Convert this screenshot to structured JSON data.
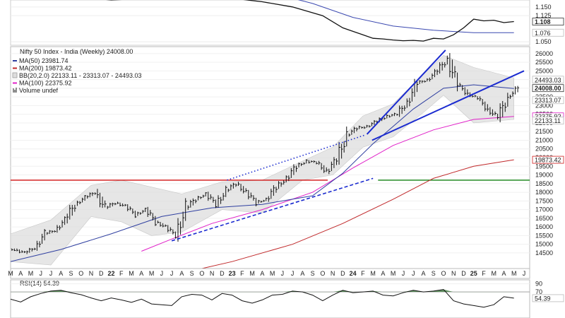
{
  "chart_data": {
    "type": "line",
    "title": "Nifty 50 Index - India (Weekly) 24008.00",
    "legend": [
      {
        "name": "MA(50) 23981.74",
        "color": "#2f3fa0",
        "swatch": "line"
      },
      {
        "name": "MA(200) 19873.42",
        "color": "#c0282a",
        "swatch": "line"
      },
      {
        "name": "BB(20,2.0) 22133.11 - 23313.07 - 24493.03",
        "color": "#aaaaaa",
        "swatch": "box"
      },
      {
        "name": "MA(100) 22375.92",
        "color": "#e020c8",
        "swatch": "line"
      },
      {
        "name": "Volume undef",
        "color": "#444444",
        "swatch": "bars"
      }
    ],
    "x_labels": [
      "M",
      "A",
      "M",
      "J",
      "J",
      "A",
      "S",
      "O",
      "N",
      "D",
      "22",
      "F",
      "M",
      "A",
      "M",
      "J",
      "J",
      "A",
      "S",
      "O",
      "N",
      "D",
      "23",
      "F",
      "M",
      "A",
      "M",
      "J",
      "J",
      "A",
      "S",
      "O",
      "N",
      "D",
      "24",
      "F",
      "M",
      "A",
      "M",
      "J",
      "J",
      "A",
      "S",
      "O",
      "N",
      "D",
      "25",
      "F",
      "M",
      "A",
      "M",
      "J"
    ],
    "year_labels": [
      "22",
      "23",
      "24",
      "25"
    ],
    "xlim": [
      0,
      51
    ],
    "main_panel": {
      "ylim": [
        13600,
        26400
      ],
      "y_ticks": [
        14500,
        15000,
        15500,
        16000,
        16500,
        17000,
        17500,
        18000,
        18500,
        19000,
        19500,
        20000,
        20500,
        21000,
        21500,
        22000,
        22500,
        23000,
        23500,
        24000,
        24500,
        25000,
        25500,
        26000
      ],
      "y_tick_labels": [
        "14500",
        "15000",
        "15500",
        "16000",
        "16500",
        "17000",
        "17500",
        "18000",
        "18500",
        "19000",
        "19500",
        "20000",
        "20500",
        "21000",
        "21500",
        "22000",
        "22500",
        "23000",
        "23500",
        "24000",
        "24500",
        "25000",
        "25500",
        "26000"
      ],
      "value_tags": [
        {
          "value": 24493.03,
          "label": "24493.03",
          "style": "plain"
        },
        {
          "value": 24008,
          "label": "24008.00",
          "style": "bold"
        },
        {
          "value": 23313.07,
          "label": "23313.07",
          "style": "plain"
        },
        {
          "value": 22375.92,
          "label": "22375.92",
          "style": "magenta"
        },
        {
          "value": 22133.11,
          "label": "22133.11",
          "style": "plain"
        },
        {
          "value": 19873.42,
          "label": "19873.42",
          "style": "red"
        }
      ],
      "horizontal_lines": [
        {
          "value": 18700,
          "color": "#d01010"
        },
        {
          "value": 18700,
          "color": "#108010"
        }
      ],
      "price_x": [
        0,
        1,
        2,
        3,
        4,
        5,
        6,
        7,
        8,
        9,
        10,
        11,
        12,
        13,
        14,
        15,
        16,
        17,
        18,
        19,
        20,
        21,
        22,
        23,
        24,
        25,
        26,
        27,
        28,
        29,
        30,
        31,
        32,
        33,
        34,
        35,
        36,
        37,
        38,
        39,
        40,
        41,
        42,
        43,
        44,
        45,
        46,
        47,
        48,
        49,
        50
      ],
      "price": [
        14700,
        14500,
        14800,
        15600,
        15800,
        16400,
        17300,
        17700,
        18000,
        17100,
        17400,
        17200,
        16700,
        17000,
        16300,
        16000,
        15500,
        17100,
        17600,
        17900,
        17300,
        18100,
        18500,
        18000,
        17400,
        17600,
        18300,
        18800,
        19500,
        19800,
        19700,
        19200,
        19900,
        21300,
        21700,
        21800,
        22100,
        22400,
        22500,
        23200,
        24300,
        24500,
        25000,
        25700,
        24200,
        23700,
        23400,
        22800,
        22300,
        23500,
        24008
      ],
      "ma50_x": [
        0,
        5,
        10,
        15,
        20,
        25,
        30,
        33,
        36,
        40,
        43,
        46,
        50
      ],
      "ma50": [
        14000,
        14700,
        15600,
        16600,
        17100,
        17300,
        17800,
        19100,
        20800,
        22800,
        24000,
        24200,
        23982
      ],
      "ma200_x": [
        0,
        8,
        16,
        22,
        28,
        33,
        38,
        42,
        46,
        50
      ],
      "ma200": [
        11800,
        12500,
        13200,
        14000,
        15000,
        16200,
        17600,
        18800,
        19500,
        19873
      ],
      "ma100_x": [
        13,
        16,
        20,
        25,
        30,
        34,
        38,
        42,
        46,
        50
      ],
      "ma100": [
        14600,
        15300,
        16200,
        17000,
        18000,
        19400,
        20700,
        21600,
        22200,
        22376
      ],
      "bb_upper_x": [
        0,
        4,
        8,
        11,
        14,
        17,
        21,
        25,
        29,
        32,
        35,
        38,
        41,
        43,
        46,
        50
      ],
      "bb_upper": [
        15600,
        16400,
        18400,
        18700,
        18300,
        17900,
        18600,
        18700,
        19800,
        20600,
        22400,
        23100,
        24800,
        25900,
        25200,
        24600
      ],
      "bb_lower_x": [
        0,
        4,
        8,
        11,
        14,
        17,
        21,
        25,
        29,
        32,
        35,
        38,
        41,
        43,
        46,
        50
      ],
      "bb_lower": [
        14000,
        13800,
        16600,
        16300,
        15500,
        15700,
        17000,
        16800,
        18700,
        19000,
        20600,
        21200,
        22600,
        23600,
        22000,
        22200
      ],
      "trendlines": [
        {
          "x": [
            35.4,
            43.2
          ],
          "y": [
            21350,
            26200
          ],
          "style": "solid",
          "color": "#1a2ad0"
        },
        {
          "x": [
            35.9,
            51
          ],
          "y": [
            21000,
            25000
          ],
          "style": "solid",
          "color": "#1a2ad0"
        },
        {
          "x": [
            16,
            36
          ],
          "y": [
            15200,
            18800
          ],
          "style": "dashed",
          "color": "#1a2ad0"
        },
        {
          "x": [
            21.5,
            35.2
          ],
          "y": [
            18700,
            21300
          ],
          "style": "dotted",
          "color": "#1a2ad0"
        }
      ]
    },
    "top_panel": {
      "ylim": [
        1.04,
        1.17
      ],
      "y_ticks": [
        1.05,
        1.125,
        1.15
      ],
      "y_tick_labels": [
        "1.050",
        "1.125",
        "1.150"
      ],
      "value_tags": [
        {
          "value": 1.108,
          "label": "1.108",
          "style": "bold"
        },
        {
          "value": 1.076,
          "label": "1.076",
          "style": "plain"
        }
      ],
      "ratio_x": [
        0,
        3,
        6,
        8,
        10,
        14,
        18,
        22,
        25,
        28,
        31,
        33,
        35,
        36,
        37,
        38,
        39,
        40,
        41,
        42,
        43,
        44,
        45,
        46,
        47,
        48,
        49,
        50
      ],
      "ratio": [
        1.2,
        1.19,
        1.185,
        1.175,
        1.17,
        1.175,
        1.18,
        1.175,
        1.165,
        1.15,
        1.125,
        1.09,
        1.07,
        1.06,
        1.058,
        1.055,
        1.053,
        1.054,
        1.052,
        1.06,
        1.058,
        1.07,
        1.09,
        1.115,
        1.11,
        1.112,
        1.105,
        1.108
      ],
      "ratio_ma_x": [
        20,
        26,
        30,
        34,
        38,
        42,
        46,
        50
      ],
      "ratio_ma": [
        1.22,
        1.19,
        1.16,
        1.12,
        1.095,
        1.083,
        1.076,
        1.076
      ]
    },
    "rsi_panel": {
      "title": "RSI(14) 54.39",
      "ylim": [
        5,
        100
      ],
      "y_ticks": [
        70,
        90
      ],
      "y_tick_labels": [
        "70",
        "90"
      ],
      "value_tags": [
        {
          "value": 54.39,
          "label": "54.39",
          "style": "plain"
        }
      ],
      "rsi_x": [
        0,
        1,
        2,
        3,
        4,
        5,
        6,
        7,
        8,
        9,
        10,
        11,
        12,
        13,
        14,
        15,
        16,
        17,
        18,
        19,
        20,
        21,
        22,
        23,
        24,
        25,
        26,
        27,
        28,
        29,
        30,
        31,
        32,
        33,
        34,
        35,
        36,
        37,
        38,
        39,
        40,
        41,
        42,
        43,
        44,
        45,
        46,
        47,
        48,
        49,
        50
      ],
      "rsi": [
        52,
        45,
        58,
        66,
        72,
        74,
        68,
        63,
        55,
        48,
        55,
        50,
        44,
        52,
        40,
        38,
        36,
        58,
        64,
        62,
        50,
        66,
        62,
        48,
        42,
        50,
        62,
        64,
        72,
        70,
        62,
        48,
        62,
        74,
        68,
        70,
        72,
        62,
        60,
        68,
        74,
        70,
        72,
        76,
        48,
        40,
        36,
        32,
        38,
        58,
        54.39
      ]
    }
  }
}
